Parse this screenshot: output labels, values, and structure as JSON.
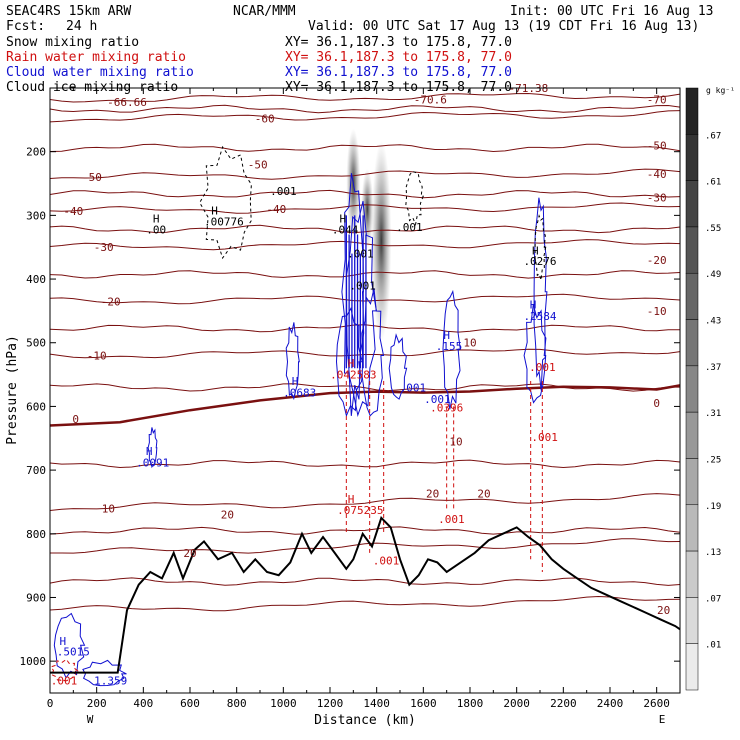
{
  "header": {
    "model": "SEAC4RS 15km ARW",
    "org": "NCAR/MMM",
    "init": "Init: 00 UTC Fri 16 Aug 13",
    "fcst_label": "Fcst:",
    "fcst_value": "24 h",
    "valid": "Valid: 00 UTC Sat 17 Aug 13 (19 CDT Fri 16 Aug 13)"
  },
  "fields": [
    {
      "name": "Snow mixing ratio",
      "xy": "XY=  36.1,187.3 to 175.8, 77.0",
      "color": "#000000"
    },
    {
      "name": "Rain water mixing ratio",
      "xy": "XY=  36.1,187.3 to 175.8, 77.0",
      "color": "#d01010"
    },
    {
      "name": "Cloud water mixing ratio",
      "xy": "XY=  36.1,187.3 to 175.8, 77.0",
      "color": "#1010d0"
    },
    {
      "name": "Cloud ice mixing ratio",
      "xy": "XY=  36.1,187.3 to 175.8, 77.0",
      "color": "#000000"
    }
  ],
  "colorbar": {
    "unit": "g kg⁻¹",
    "labels": [
      ".67",
      ".61",
      ".55",
      ".49",
      ".43",
      ".37",
      ".31",
      ".25",
      ".19",
      ".13",
      ".07",
      ".01"
    ]
  },
  "chart_data": {
    "type": "line",
    "xlabel": "Distance (km)",
    "ylabel": "Pressure (hPa)",
    "xlim": [
      0,
      2700
    ],
    "ylim": [
      1050,
      100
    ],
    "x_ticks": [
      0,
      100,
      200,
      300,
      400,
      500,
      600,
      700,
      800,
      900,
      1000,
      1100,
      1200,
      1300,
      1400,
      1500,
      1600,
      1700,
      1800,
      1900,
      2000,
      2100,
      2200,
      2300,
      2400,
      2500,
      2600
    ],
    "x_tick_labels": [
      "0",
      "200",
      "400",
      "600",
      "800",
      "1000",
      "1200",
      "1400",
      "1600",
      "1800",
      "2000",
      "2200",
      "2400",
      "2600"
    ],
    "y_tick_labels": [
      "200",
      "300",
      "400",
      "500",
      "600",
      "700",
      "800",
      "900",
      "1000"
    ],
    "endpoints": [
      "W",
      "E"
    ],
    "temperature_levels": [
      -70,
      -60,
      -50,
      -40,
      -30,
      -20,
      -10,
      0,
      10,
      20,
      30
    ],
    "temperature_labels": [
      {
        "text": "-66.66",
        "x": 330,
        "p": 122
      },
      {
        "text": "-70.6",
        "x": 1630,
        "p": 118
      },
      {
        "text": "-71.38",
        "x": 2050,
        "p": 100
      },
      {
        "text": "-70",
        "x": 2600,
        "p": 118
      },
      {
        "text": "-60",
        "x": 920,
        "p": 148
      },
      {
        "text": "-50",
        "x": 180,
        "p": 240
      },
      {
        "text": "-50",
        "x": 890,
        "p": 220
      },
      {
        "text": "-50",
        "x": 2600,
        "p": 190
      },
      {
        "text": "-40",
        "x": 100,
        "p": 293
      },
      {
        "text": "-40",
        "x": 970,
        "p": 290
      },
      {
        "text": "-40",
        "x": 2600,
        "p": 235
      },
      {
        "text": "-30",
        "x": 230,
        "p": 350
      },
      {
        "text": "-30",
        "x": 2600,
        "p": 272
      },
      {
        "text": "-20",
        "x": 260,
        "p": 435
      },
      {
        "text": "-20",
        "x": 2600,
        "p": 370
      },
      {
        "text": "-10",
        "x": 200,
        "p": 520
      },
      {
        "text": "-10",
        "x": 2600,
        "p": 450
      },
      {
        "text": "10",
        "x": 1800,
        "p": 500
      },
      {
        "text": "10",
        "x": 1740,
        "p": 655
      },
      {
        "text": "10",
        "x": 250,
        "p": 760
      },
      {
        "text": "0",
        "x": 110,
        "p": 620
      },
      {
        "text": "0",
        "x": 2600,
        "p": 595
      },
      {
        "text": "20",
        "x": 1640,
        "p": 737
      },
      {
        "text": "20",
        "x": 1860,
        "p": 737
      },
      {
        "text": "20",
        "x": 760,
        "p": 770
      },
      {
        "text": "20",
        "x": 600,
        "p": 830
      },
      {
        "text": "20",
        "x": 2630,
        "p": 920
      }
    ],
    "hydrometeor_labels": [
      {
        "text": "H",
        "x": 455,
        "p": 305,
        "color": "#000000"
      },
      {
        "text": ".00",
        "x": 455,
        "p": 322,
        "color": "#000000"
      },
      {
        "text": "H",
        "x": 705,
        "p": 292,
        "color": "#000000"
      },
      {
        "text": ".00776",
        "x": 745,
        "p": 310,
        "color": "#000000"
      },
      {
        "text": ".001",
        "x": 1000,
        "p": 262,
        "color": "#000000"
      },
      {
        "text": "H",
        "x": 1255,
        "p": 305,
        "color": "#000000"
      },
      {
        "text": ".044",
        "x": 1265,
        "p": 322,
        "color": "#000000"
      },
      {
        "text": ".001",
        "x": 1540,
        "p": 318,
        "color": "#000000"
      },
      {
        "text": ".001",
        "x": 1330,
        "p": 360,
        "color": "#000000"
      },
      {
        "text": ".001",
        "x": 1340,
        "p": 410,
        "color": "#000000"
      },
      {
        "text": "H",
        "x": 2080,
        "p": 355,
        "color": "#000000"
      },
      {
        "text": ".0276",
        "x": 2100,
        "p": 372,
        "color": "#000000"
      },
      {
        "text": "H",
        "x": 1050,
        "p": 560,
        "color": "#1010d0"
      },
      {
        "text": ".0683",
        "x": 1070,
        "p": 578,
        "color": "#1010d0"
      },
      {
        "text": "H",
        "x": 1700,
        "p": 488,
        "color": "#1010d0"
      },
      {
        "text": ".155",
        "x": 1710,
        "p": 505,
        "color": "#1010d0"
      },
      {
        "text": "H",
        "x": 2070,
        "p": 440,
        "color": "#1010d0"
      },
      {
        "text": ".2584",
        "x": 2100,
        "p": 458,
        "color": "#1010d0"
      },
      {
        "text": "H",
        "x": 1290,
        "p": 532,
        "color": "#d01010"
      },
      {
        "text": ".042583",
        "x": 1300,
        "p": 550,
        "color": "#d01010"
      },
      {
        "text": ".001",
        "x": 1555,
        "p": 570,
        "color": "#1010d0"
      },
      {
        "text": ".001",
        "x": 1660,
        "p": 588,
        "color": "#1010d0"
      },
      {
        "text": ".0396",
        "x": 1700,
        "p": 602,
        "color": "#d01010"
      },
      {
        "text": ".001",
        "x": 2110,
        "p": 538,
        "color": "#d01010"
      },
      {
        "text": ".001",
        "x": 2120,
        "p": 648,
        "color": "#d01010"
      },
      {
        "text": "H",
        "x": 425,
        "p": 670,
        "color": "#1010d0"
      },
      {
        "text": ".0091",
        "x": 440,
        "p": 688,
        "color": "#1010d0"
      },
      {
        "text": "H",
        "x": 1290,
        "p": 745,
        "color": "#d01010"
      },
      {
        "text": ".075235",
        "x": 1330,
        "p": 763,
        "color": "#d01010"
      },
      {
        "text": ".001",
        "x": 1720,
        "p": 777,
        "color": "#d01010"
      },
      {
        "text": ".001",
        "x": 1440,
        "p": 842,
        "color": "#d01010"
      },
      {
        "text": "H",
        "x": 55,
        "p": 968,
        "color": "#1010d0"
      },
      {
        "text": ".5015",
        "x": 100,
        "p": 985,
        "color": "#1010d0"
      },
      {
        "text": ".001",
        "x": 60,
        "p": 1030,
        "color": "#d01010"
      },
      {
        "text": "1.359",
        "x": 260,
        "p": 1030,
        "color": "#1010d0"
      }
    ],
    "terrain": {
      "name": "",
      "x": [
        0,
        290,
        330,
        380,
        430,
        480,
        530,
        570,
        620,
        660,
        720,
        780,
        830,
        880,
        930,
        980,
        1030,
        1080,
        1120,
        1170,
        1220,
        1270,
        1300,
        1340,
        1380,
        1420,
        1460,
        1500,
        1540,
        1580,
        1620,
        1660,
        1700,
        1760,
        1820,
        1880,
        1940,
        2000,
        2050,
        2100,
        2150,
        2200,
        2260,
        2320,
        2380,
        2440,
        2500,
        2560,
        2620,
        2680,
        2700
      ],
      "p": [
        1018,
        1018,
        920,
        880,
        860,
        870,
        830,
        870,
        825,
        812,
        840,
        830,
        860,
        840,
        860,
        865,
        845,
        800,
        830,
        805,
        830,
        855,
        840,
        800,
        820,
        775,
        790,
        840,
        880,
        865,
        840,
        845,
        860,
        845,
        830,
        810,
        800,
        790,
        805,
        818,
        840,
        855,
        870,
        885,
        895,
        905,
        915,
        925,
        935,
        945,
        950
      ]
    },
    "freezing_level": {
      "name": "",
      "x": [
        0,
        300,
        600,
        900,
        1200,
        1400,
        1600,
        1800,
        2000,
        2200,
        2400,
        2600,
        2700
      ],
      "p": [
        630,
        622,
        604,
        592,
        582,
        578,
        576,
        574,
        573,
        572,
        571,
        571,
        570
      ]
    }
  }
}
